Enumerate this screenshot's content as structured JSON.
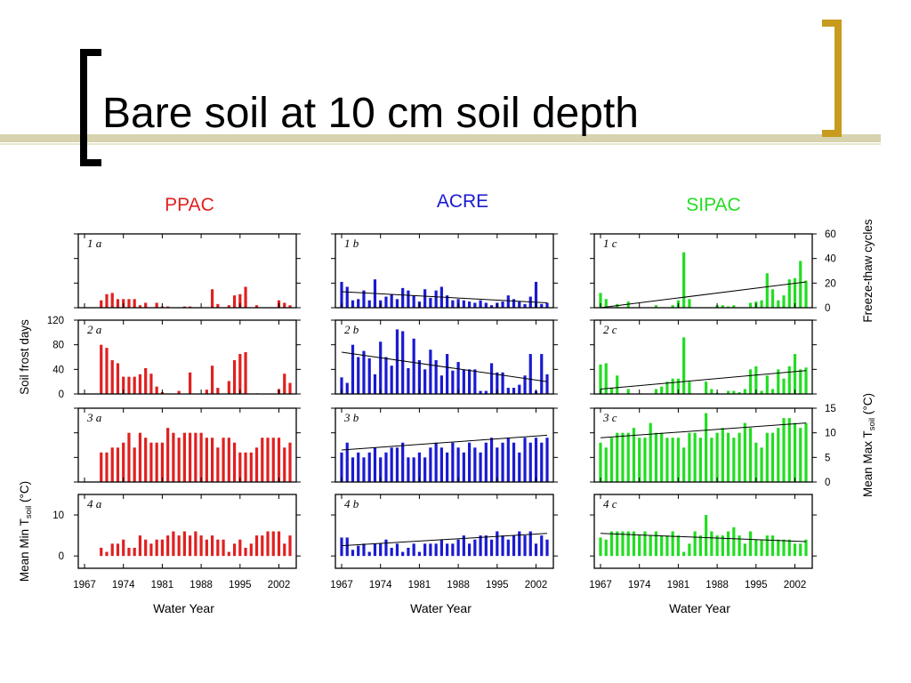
{
  "slide": {
    "title": "Bare soil at 10 cm soil depth",
    "accent_color": "#C89A1E",
    "stripe_color": "#D6D3AE",
    "bracket_color": "#000000"
  },
  "chart_data": {
    "type": "bar",
    "grid": false,
    "years": [
      1967,
      1968,
      1969,
      1970,
      1971,
      1972,
      1973,
      1974,
      1975,
      1976,
      1977,
      1978,
      1979,
      1980,
      1981,
      1982,
      1983,
      1984,
      1985,
      1986,
      1987,
      1988,
      1989,
      1990,
      1991,
      1992,
      1993,
      1994,
      1995,
      1996,
      1997,
      1998,
      1999,
      2000,
      2001,
      2002,
      2003,
      2004
    ],
    "x_ticks": [
      1967,
      1974,
      1981,
      1988,
      1995,
      2002
    ],
    "xlabel": "Water Year",
    "columns": [
      {
        "title": "PPAC",
        "color": "#E02020"
      },
      {
        "title": "ACRE",
        "color": "#1A1AD0"
      },
      {
        "title": "SIPAC",
        "color": "#22DD22"
      }
    ],
    "rows": [
      {
        "row": 1,
        "ylabel": "Freeze-thaw cycles",
        "ylabel_side": "right",
        "ylim": [
          0,
          60
        ],
        "yticks": [
          0,
          20,
          40,
          60
        ]
      },
      {
        "row": 2,
        "ylabel": "Soil frost days",
        "ylabel_side": "left",
        "ylim": [
          0,
          120
        ],
        "yticks": [
          0,
          40,
          80,
          120
        ]
      },
      {
        "row": 3,
        "ylabel": "Mean Max T",
        "ylabel_sub": "soil",
        "ylabel_unit": " (°C)",
        "ylabel_side": "right",
        "ylim": [
          0,
          15
        ],
        "yticks": [
          0,
          5,
          10,
          15
        ]
      },
      {
        "row": 4,
        "ylabel": "Mean Min T",
        "ylabel_sub": "soil",
        "ylabel_unit": " (°C)",
        "ylabel_side": "left",
        "ylim": [
          -3,
          15
        ],
        "yticks": [
          0,
          10
        ]
      }
    ],
    "panels": [
      {
        "id": "1a",
        "label": "1 a",
        "row": 1,
        "col": 0,
        "trend": null,
        "values": [
          0,
          0,
          0,
          6,
          11,
          12,
          7,
          7,
          7,
          7,
          2,
          4,
          0,
          4,
          1,
          1,
          0,
          0,
          1,
          1,
          0,
          0,
          0,
          15,
          3,
          0,
          2,
          10,
          11,
          17,
          0,
          2,
          0,
          0,
          0,
          6,
          4,
          2
        ]
      },
      {
        "id": "2a",
        "label": "2 a",
        "row": 2,
        "col": 0,
        "trend": null,
        "values": [
          0,
          0,
          0,
          80,
          75,
          55,
          50,
          28,
          28,
          28,
          32,
          42,
          33,
          12,
          3,
          0,
          0,
          5,
          0,
          35,
          0,
          0,
          7,
          46,
          10,
          0,
          21,
          55,
          65,
          68,
          0,
          1,
          0,
          0,
          0,
          8,
          33,
          18
        ]
      },
      {
        "id": "3a",
        "label": "3 a",
        "row": 3,
        "col": 0,
        "trend": null,
        "values": [
          0,
          0,
          0,
          6,
          6,
          7,
          7,
          8,
          10,
          7,
          10,
          9,
          8,
          8,
          8,
          11,
          10,
          9,
          10,
          10,
          10,
          10,
          9,
          9,
          7,
          9,
          9,
          8,
          6,
          6,
          6,
          7,
          9,
          9,
          9,
          9,
          7,
          8
        ]
      },
      {
        "id": "4a",
        "label": "4 a",
        "row": 4,
        "col": 0,
        "trend": null,
        "values": [
          0,
          0,
          0,
          2,
          1,
          3,
          3,
          4,
          2,
          2,
          5,
          4,
          3,
          4,
          4,
          5,
          6,
          5,
          6,
          5,
          6,
          5,
          4,
          5,
          4,
          4,
          1,
          3,
          4,
          2,
          3,
          5,
          5,
          6,
          6,
          6,
          3,
          5
        ]
      },
      {
        "id": "1b",
        "label": "1 b",
        "row": 1,
        "col": 1,
        "trend": [
          13,
          4
        ],
        "values": [
          21,
          17,
          6,
          7,
          14,
          6,
          23,
          6,
          9,
          11,
          7,
          16,
          14,
          10,
          5,
          15,
          8,
          14,
          17,
          10,
          6,
          7,
          6,
          5,
          4,
          6,
          4,
          2,
          4,
          5,
          10,
          7,
          5,
          3,
          9,
          21,
          3,
          4
        ]
      },
      {
        "id": "2b",
        "label": "2 b",
        "row": 2,
        "col": 1,
        "trend": [
          68,
          20
        ],
        "values": [
          27,
          18,
          80,
          60,
          70,
          58,
          32,
          85,
          60,
          46,
          105,
          102,
          42,
          90,
          55,
          40,
          72,
          55,
          30,
          65,
          38,
          52,
          40,
          40,
          40,
          5,
          5,
          50,
          35,
          35,
          10,
          10,
          15,
          30,
          65,
          5,
          65,
          32
        ]
      },
      {
        "id": "3b",
        "label": "3 b",
        "row": 3,
        "col": 1,
        "trend": [
          6.5,
          9.5
        ],
        "values": [
          6,
          8,
          5,
          6,
          5,
          6,
          7,
          5,
          6,
          7,
          7,
          8,
          5,
          5,
          6,
          5,
          7,
          8,
          7,
          6,
          8,
          7,
          6,
          8,
          7,
          6,
          8,
          9,
          7,
          8,
          9,
          8,
          6,
          9,
          8,
          9,
          8,
          9
        ]
      },
      {
        "id": "4b",
        "label": "4 b",
        "row": 4,
        "col": 1,
        "trend": [
          2.5,
          5.5
        ],
        "values": [
          4.5,
          4.5,
          1.5,
          2.5,
          3,
          1,
          3,
          3,
          4,
          2,
          3,
          1,
          2,
          3,
          1,
          3,
          3,
          3,
          4,
          3,
          3,
          4,
          5,
          3,
          4,
          5,
          5,
          4,
          6,
          5,
          4,
          5,
          6,
          5,
          6,
          3,
          5,
          4
        ]
      },
      {
        "id": "1c",
        "label": "1 c",
        "row": 1,
        "col": 2,
        "trend": [
          0,
          21
        ],
        "values": [
          12,
          7,
          0,
          3,
          0,
          5,
          0,
          0,
          0,
          0,
          2,
          0,
          0,
          2,
          6,
          45,
          7,
          0,
          0,
          0,
          0,
          2,
          2,
          1,
          2,
          0,
          0,
          4,
          5,
          6,
          28,
          15,
          6,
          10,
          23,
          24,
          38,
          22
        ]
      },
      {
        "id": "2c",
        "label": "2 c",
        "row": 2,
        "col": 2,
        "trend": [
          8,
          38
        ],
        "values": [
          48,
          50,
          10,
          30,
          0,
          8,
          0,
          0,
          0,
          0,
          8,
          12,
          20,
          25,
          25,
          92,
          20,
          0,
          0,
          20,
          8,
          2,
          0,
          5,
          5,
          3,
          8,
          40,
          45,
          5,
          30,
          8,
          40,
          25,
          45,
          65,
          40,
          43
        ]
      },
      {
        "id": "3c",
        "label": "3 c",
        "row": 3,
        "col": 2,
        "trend": [
          9,
          12
        ],
        "values": [
          8,
          7,
          9,
          10,
          10,
          10,
          11,
          9,
          9,
          12,
          10,
          10,
          9,
          9,
          9,
          7,
          10,
          10,
          9,
          14,
          9,
          10,
          11,
          10,
          9,
          10,
          12,
          11,
          8,
          7,
          10,
          10,
          11,
          13,
          13,
          12,
          11,
          12
        ]
      },
      {
        "id": "4c",
        "label": "4 c",
        "row": 4,
        "col": 2,
        "trend": [
          5.5,
          3.5
        ],
        "values": [
          4.5,
          4,
          6,
          6,
          6,
          6,
          6,
          5,
          6,
          5,
          6,
          5,
          5,
          6,
          5,
          1,
          3,
          6,
          5,
          10,
          6,
          5,
          5,
          6,
          7,
          5,
          3,
          6,
          4,
          4,
          5,
          5,
          4,
          4,
          4,
          3,
          3,
          4
        ]
      }
    ]
  }
}
